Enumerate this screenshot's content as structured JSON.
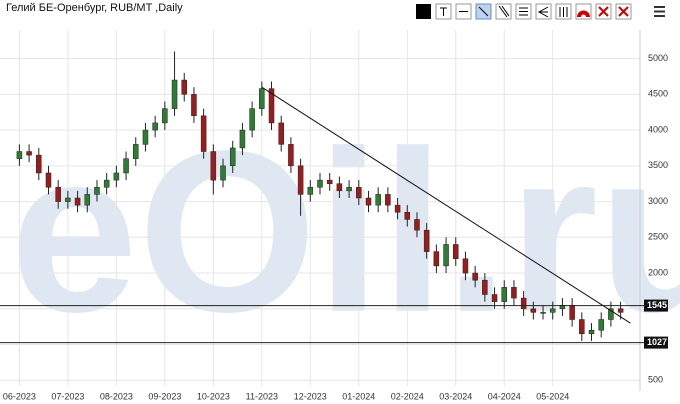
{
  "chart_data": {
    "type": "candlestick",
    "title": "Гелий БЕ-Оренбург, RUB/MT ,Daily",
    "watermark": "eOil.ru",
    "up_color": "#2e7d32",
    "down_color": "#9b1c1c",
    "grid": true,
    "xlim": [
      -0.4,
      12.8
    ],
    "ylim": [
      350,
      5400
    ],
    "yticks": [
      500,
      1000,
      1500,
      2000,
      2500,
      3000,
      3500,
      4000,
      4500,
      5000
    ],
    "xticks": [
      {
        "value": 0,
        "label": "06-2023"
      },
      {
        "value": 1,
        "label": "07-2023"
      },
      {
        "value": 2,
        "label": "08-2023"
      },
      {
        "value": 3,
        "label": "09-2023"
      },
      {
        "value": 4,
        "label": "10-2023"
      },
      {
        "value": 5,
        "label": "11-2023"
      },
      {
        "value": 6,
        "label": "12-2023"
      },
      {
        "value": 7,
        "label": "01-2024"
      },
      {
        "value": 8,
        "label": "02-2024"
      },
      {
        "value": 9,
        "label": "03-2024"
      },
      {
        "value": 10,
        "label": "04-2024"
      },
      {
        "value": 11,
        "label": "05-2024"
      }
    ],
    "x": [
      0,
      0.2,
      0.4,
      0.6,
      0.8,
      1,
      1.2,
      1.4,
      1.6,
      1.8,
      2,
      2.2,
      2.4,
      2.6,
      2.8,
      3,
      3.2,
      3.4,
      3.6,
      3.8,
      4,
      4.2,
      4.4,
      4.6,
      4.8,
      5,
      5.2,
      5.4,
      5.6,
      5.8,
      6,
      6.2,
      6.4,
      6.6,
      6.8,
      7,
      7.2,
      7.4,
      7.6,
      7.8,
      8,
      8.2,
      8.4,
      8.6,
      8.8,
      9,
      9.2,
      9.4,
      9.6,
      9.8,
      10,
      10.2,
      10.4,
      10.6,
      10.8,
      11,
      11.2,
      11.4,
      11.6,
      11.8,
      12,
      12.2,
      12.4
    ],
    "open": [
      3600,
      3700,
      3650,
      3400,
      3200,
      3000,
      3050,
      2950,
      3100,
      3200,
      3300,
      3400,
      3600,
      3800,
      4000,
      4100,
      4300,
      4700,
      4500,
      4200,
      3700,
      3300,
      3500,
      3750,
      4000,
      4300,
      4580,
      4100,
      3800,
      3500,
      3100,
      3200,
      3300,
      3250,
      3150,
      3200,
      3050,
      2950,
      3100,
      2950,
      2850,
      2750,
      2600,
      2300,
      2100,
      2400,
      2200,
      2000,
      1900,
      1700,
      1600,
      1800,
      1650,
      1500,
      1450,
      1450,
      1500,
      1550,
      1350,
      1150,
      1200,
      1350,
      1500
    ],
    "high": [
      3800,
      3800,
      3750,
      3500,
      3300,
      3150,
      3150,
      3200,
      3300,
      3400,
      3500,
      3700,
      3900,
      4100,
      4200,
      4400,
      5100,
      4800,
      4600,
      4300,
      3800,
      3600,
      3850,
      4100,
      4400,
      4680,
      4680,
      4200,
      3900,
      3600,
      3300,
      3400,
      3400,
      3350,
      3300,
      3300,
      3150,
      3200,
      3200,
      3050,
      2950,
      2850,
      2700,
      2400,
      2500,
      2500,
      2300,
      2100,
      2000,
      1800,
      1900,
      1900,
      1750,
      1600,
      1550,
      1600,
      1650,
      1650,
      1450,
      1300,
      1450,
      1600,
      1600
    ],
    "low": [
      3500,
      3550,
      3300,
      3100,
      2900,
      2900,
      2850,
      2850,
      3000,
      3100,
      3200,
      3300,
      3500,
      3700,
      3900,
      4000,
      4200,
      4400,
      4100,
      3600,
      3100,
      3200,
      3400,
      3650,
      3900,
      4200,
      4000,
      3700,
      3400,
      2800,
      3000,
      3100,
      3150,
      3050,
      3050,
      2950,
      2850,
      2850,
      2850,
      2750,
      2650,
      2500,
      2200,
      2000,
      2000,
      2100,
      1900,
      1800,
      1600,
      1500,
      1500,
      1550,
      1400,
      1350,
      1350,
      1350,
      1400,
      1250,
      1050,
      1050,
      1100,
      1250,
      1350
    ],
    "close": [
      3700,
      3650,
      3400,
      3200,
      3000,
      3050,
      2950,
      3100,
      3200,
      3300,
      3400,
      3600,
      3800,
      4000,
      4100,
      4300,
      4700,
      4500,
      4200,
      3700,
      3300,
      3500,
      3750,
      4000,
      4300,
      4580,
      4100,
      3800,
      3500,
      3100,
      3200,
      3300,
      3250,
      3150,
      3200,
      3050,
      2950,
      3100,
      2950,
      2850,
      2750,
      2600,
      2300,
      2100,
      2400,
      2200,
      2000,
      1900,
      1700,
      1600,
      1800,
      1650,
      1500,
      1450,
      1450,
      1500,
      1550,
      1350,
      1150,
      1200,
      1350,
      1500,
      1450
    ],
    "hlines": [
      1545,
      1027
    ],
    "trendline": {
      "x": [
        5,
        12.6
      ],
      "y": [
        4600,
        1300
      ]
    }
  }
}
